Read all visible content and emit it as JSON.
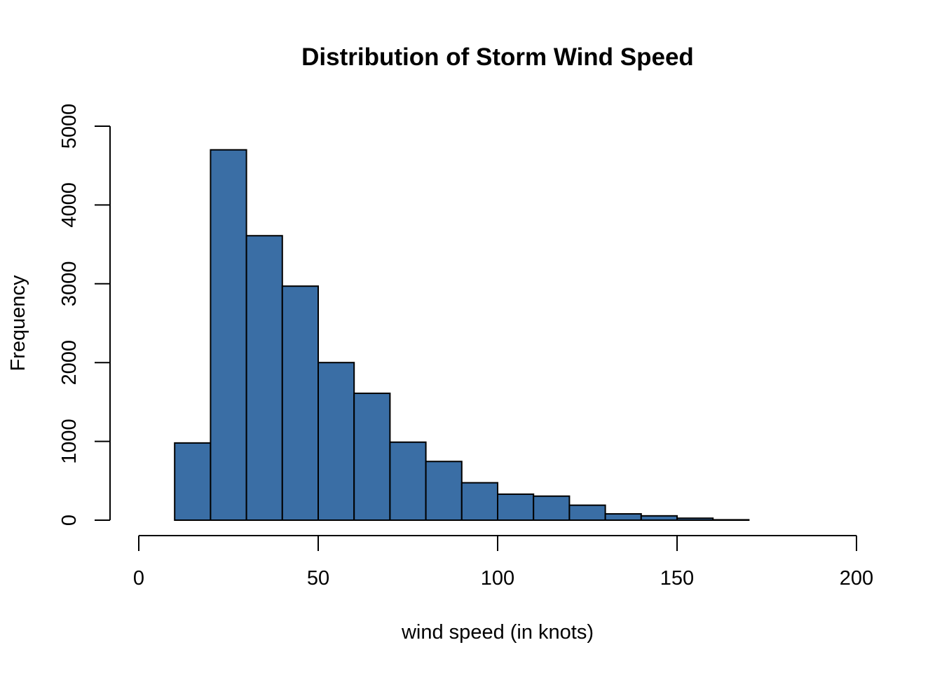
{
  "chart_data": {
    "type": "bar",
    "title": "Distribution of Storm Wind Speed",
    "xlabel": "wind speed (in knots)",
    "ylabel": "Frequency",
    "bar_color": "#3a6ea5",
    "bins": [
      {
        "x0": 10,
        "x1": 20,
        "value": 980
      },
      {
        "x0": 20,
        "x1": 30,
        "value": 4700
      },
      {
        "x0": 30,
        "x1": 40,
        "value": 3610
      },
      {
        "x0": 40,
        "x1": 50,
        "value": 2970
      },
      {
        "x0": 50,
        "x1": 60,
        "value": 2000
      },
      {
        "x0": 60,
        "x1": 70,
        "value": 1610
      },
      {
        "x0": 70,
        "x1": 80,
        "value": 990
      },
      {
        "x0": 80,
        "x1": 90,
        "value": 745
      },
      {
        "x0": 90,
        "x1": 100,
        "value": 475
      },
      {
        "x0": 100,
        "x1": 110,
        "value": 330
      },
      {
        "x0": 110,
        "x1": 120,
        "value": 305
      },
      {
        "x0": 120,
        "x1": 130,
        "value": 190
      },
      {
        "x0": 130,
        "x1": 140,
        "value": 80
      },
      {
        "x0": 140,
        "x1": 150,
        "value": 55
      },
      {
        "x0": 150,
        "x1": 160,
        "value": 25
      },
      {
        "x0": 160,
        "x1": 170,
        "value": 5
      }
    ],
    "xlim": [
      0,
      200
    ],
    "ylim": [
      0,
      5000
    ],
    "xticks": [
      0,
      50,
      100,
      150,
      200
    ],
    "yticks": [
      0,
      1000,
      2000,
      3000,
      4000,
      5000
    ],
    "grid": false,
    "legend": "none"
  }
}
